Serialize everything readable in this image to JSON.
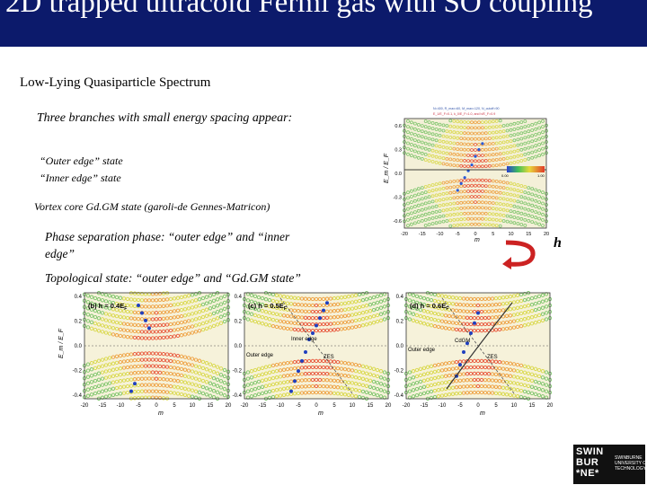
{
  "slide": {
    "title": "2D trapped ultracold Fermi gas with SO coupling",
    "subtitle": "Low-Lying Quasiparticle Spectrum",
    "bullets": [
      "Three branches with small energy spacing appear:",
      "“Outer edge” state",
      "“Inner edge” state",
      "Vortex core Gd.GM state (garoli-de Gennes-Matricon)",
      "Phase separation phase: “outer edge” and “inner edge”",
      "Topological state: “outer edge” and “Gd.GM state”"
    ],
    "h_label": "h",
    "arrow_color": "#cc2222"
  },
  "figure_top": {
    "ylabel": "E_m / E_F",
    "xlabel": "m",
    "colorbar_min": "0.00",
    "colorbar_max": "1.00",
    "legend_line1": "N=400, R_max=60, M_max=120, N_cutoff=90",
    "legend_line2": "E_1/E_F=0.1, k_0/E_F=1.0, and h/E_F=0.9",
    "yticks": [
      "0.6",
      "0.3",
      "0.0",
      "-0.3",
      "-0.6"
    ],
    "xticks": [
      "-20",
      "-15",
      "-10",
      "-5",
      "0",
      "5",
      "10",
      "15",
      "20"
    ]
  },
  "figure_bottom": {
    "ylabel": "E_m / E_F",
    "xlabel": "m",
    "yticks": [
      "0.4",
      "0.2",
      "0.0",
      "-0.2",
      "-0.4"
    ],
    "xticks": [
      "-20",
      "-15",
      "-10",
      "-5",
      "0",
      "5",
      "10",
      "15",
      "20"
    ],
    "panel_b": {
      "label": "(b) h = 0.4E",
      "sub": "F"
    },
    "panel_c": {
      "label": "(c) h = 0.5E",
      "sub": "F",
      "inner_edge": "Inner edge",
      "outer_edge": "Outer edge",
      "zes": "ZES"
    },
    "panel_d": {
      "label": "(d) h = 0.6E",
      "sub": "F",
      "outer_edge": "Outer edge",
      "cdgm": "CdGM",
      "zes": "ZES"
    },
    "colors": {
      "low": "#e8553a",
      "mid": "#d9d84a",
      "high": "#7cc46a",
      "marker": "#1f3fbf"
    }
  },
  "logo": {
    "main": "SWIN\nBUR\n*NE*",
    "sub": "SWINBURNE\nUNIVERSITY OF\nTECHNOLOGY"
  }
}
